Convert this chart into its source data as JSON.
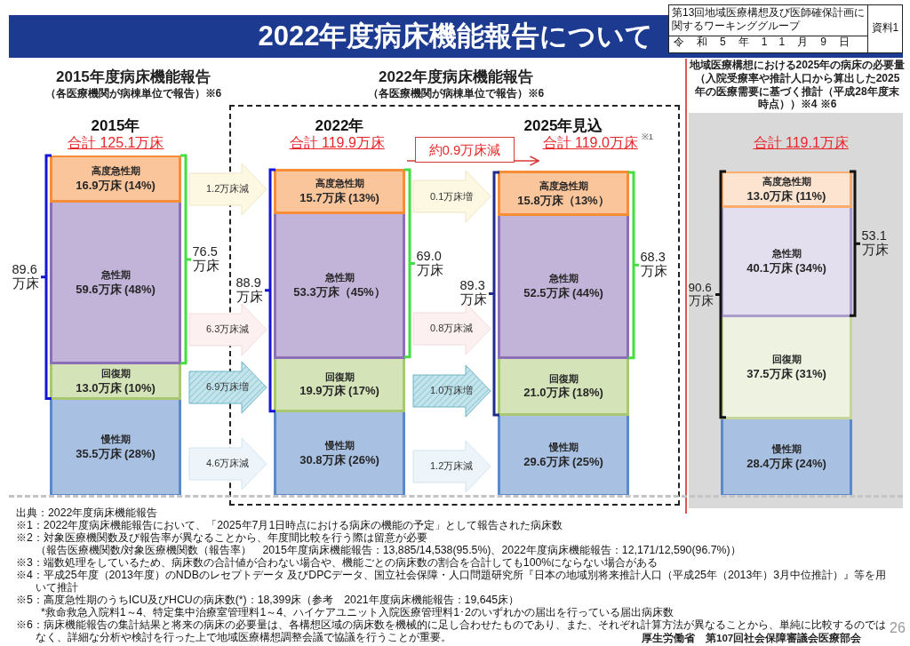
{
  "chart_data": [
    {
      "type": "bar",
      "title": "2022年度病床機能報告について",
      "categories": [
        "2015年",
        "2022年",
        "2025年見込"
      ],
      "stacked": true,
      "series": [
        {
          "name": "慢性期",
          "color": "#a8c0e2",
          "values": [
            35.5,
            30.8,
            29.6
          ],
          "value_labels": [
            "35.5万床 (28%)",
            "30.8万床 (26%)",
            "29.6万床 (25%)"
          ]
        },
        {
          "name": "回復期",
          "color": "#d5e3b9",
          "values": [
            13.0,
            19.9,
            21.0
          ],
          "value_labels": [
            "13.0万床 (10%)",
            "19.9万床 (17%)",
            "21.0万床 (18%)"
          ]
        },
        {
          "name": "急性期",
          "color": "#c2b3d9",
          "values": [
            59.6,
            53.3,
            52.5
          ],
          "value_labels": [
            "59.6万床 (48%)",
            "53.3万床（45%）",
            "52.5万床 (44%)"
          ]
        },
        {
          "name": "高度急性期",
          "color": "#fbc59b",
          "values": [
            16.9,
            15.7,
            15.8
          ],
          "value_labels": [
            "16.9万床 (14%)",
            "15.7万床 (13%)",
            "15.8万床（13%）"
          ]
        }
      ],
      "totals": [
        "合計 125.1万床",
        "合計 119.9万床",
        "合計 119.0万床"
      ],
      "annotations": [
        "2015年度病床機能報告",
        "（各医療機関が病棟単位で報告）※6",
        "2022年度病床機能報告",
        "（各医療機関が病棟単位で報告）※6",
        "89.6万床",
        "76.5万床",
        "88.9万床",
        "69.0万床",
        "89.3万床",
        "68.3万床",
        "1.2万床減",
        "6.3万床減",
        "6.9万床増",
        "4.6万床減",
        "0.1万床増",
        "0.8万床減",
        "1.0万床増",
        "1.2万床減",
        "約0.9万床減",
        "※1",
        "出典：2022年度病床機能報告",
        "※1：2022年度病床機能報告において、「2025年7月1日時点における病床の機能の予定」として報告された病床数",
        "※2：対象医療機関数及び報告率が異なることから、年度間比較を行う際は留意が必要",
        "（報告医療機関数/対象医療機関数（報告率）　2015年度病床機能報告：13,885/14,538(95.5%)、2022年度病床機能報告：12,171/12,590(96.7%)）",
        "※3：端数処理をしているため、病床数の合計値が合わない場合や、機能ごとの病床数の割合を合計しても100%にならない場合がある",
        "※4：平成25年度（2013年度）のNDBのレセプトデータ 及びDPCデータ、国立社会保障・人口問題研究所『日本の地域別将来推計人口（平成25年（2013年）3月中位推計）』等を用いて推計",
        "※5：高度急性期のうちICU及びHCUの病床数(*)：18,399床（参考　2021年度病床機能報告：19,645床）",
        "*救命救急入院料1～4、特定集中治療室管理料1～4、ハイケアユニット入院医療管理料1･2のいずれかの届出を行っている届出病床数",
        "※6：病床機能報告の集計結果と将来の病床の必要量は、各構想区域の病床数を機械的に足し合わせたものであり、また、それぞれ計算方法が異なることから、単純に比較するのではなく、詳細な分析や検討を行った上で地域医療構想調整会議で協議を行うことが重要。",
        "厚生労働省　第107回社会保障審議会医療部会",
        "26",
        "第13回地域医療構想及び医師確保計画に関するワーキンググループ",
        "令和5年11月9日",
        "資料1"
      ]
    },
    {
      "type": "bar",
      "title": "地域医療構想における2025年の病床の必要量",
      "subtitle": "（入院受療率や推計人口から算出した2025年の医療需要に基づく推計（平成28年度末時点））※4 ※6",
      "categories": [
        null
      ],
      "stacked": true,
      "series": [
        {
          "name": "慢性期",
          "color": "#a8c0e2",
          "values": [
            28.4
          ],
          "value_labels": [
            "28.4万床 (24%)"
          ]
        },
        {
          "name": "回復期",
          "color": "#eef3e1",
          "values": [
            37.5
          ],
          "value_labels": [
            "37.5万床 (31%)"
          ]
        },
        {
          "name": "急性期",
          "color": "#e4dfee",
          "values": [
            40.1
          ],
          "value_labels": [
            "40.1万床 (34%)"
          ]
        },
        {
          "name": "高度急性期",
          "color": "#fde4d0",
          "values": [
            13.0
          ],
          "value_labels": [
            "13.0万床 (11%)"
          ]
        }
      ],
      "totals": [
        "合計 119.1万床"
      ],
      "annotations": [
        "90.6万床",
        "53.1万床"
      ]
    }
  ]
}
